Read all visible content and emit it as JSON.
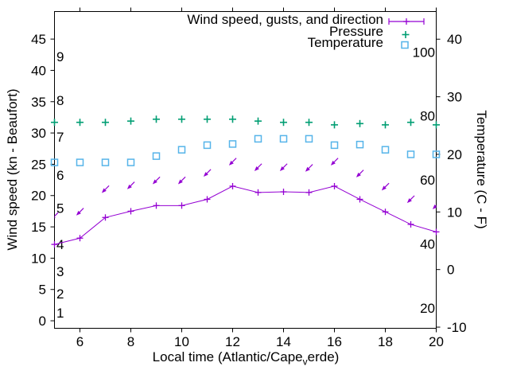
{
  "chart_data": {
    "type": "line",
    "title": "",
    "background": "#ffffff",
    "grid": false,
    "hours": [
      5,
      6,
      7,
      8,
      9,
      10,
      11,
      12,
      13,
      14,
      15,
      16,
      17,
      18,
      19,
      20
    ],
    "x_axis": {
      "label_parts": {
        "pre": "Local time (Atlantic/Cape",
        "sub": "v",
        "post": "erde)"
      },
      "ticks": [
        6,
        8,
        10,
        12,
        14,
        16,
        18,
        20
      ],
      "range": [
        5,
        20
      ]
    },
    "left_axis": {
      "label": "Wind speed (kn - Beaufort)",
      "ticks": [
        0,
        5,
        10,
        15,
        20,
        25,
        30,
        35,
        40,
        45
      ],
      "range": [
        -1.2,
        49.4
      ],
      "beaufort_labels": {
        "values": [
          "1",
          "2",
          "3",
          "4",
          "5",
          "6",
          "7",
          "8",
          "9"
        ],
        "position_kn": [
          1.3,
          4.3,
          7.9,
          12.2,
          18.0,
          23.3,
          29.4,
          35.2,
          42.2
        ]
      }
    },
    "right_axis": {
      "label": "Temperature (C - F)",
      "ticks_celsius": [
        -10,
        0,
        10,
        20,
        30,
        40
      ],
      "range_celsius": [
        -10.2,
        44.8
      ],
      "fahrenheit_labels": [
        20,
        40,
        60,
        80,
        100
      ]
    },
    "legend": [
      {
        "label": "Wind speed, gusts, and direction",
        "marker": "errorbar-plus",
        "color": "#9400d3"
      },
      {
        "label": "Pressure",
        "marker": "plus",
        "color": "#009e73"
      },
      {
        "label": "Temperature",
        "marker": "open-square",
        "color": "#56b4e9"
      }
    ],
    "series": [
      {
        "name": "wind-speed",
        "axis": "left",
        "unit": "kn",
        "style": "line-plus",
        "color": "#9400d3",
        "y": [
          12.2,
          13.2,
          16.5,
          17.5,
          18.4,
          18.4,
          19.4,
          21.5,
          20.5,
          20.6,
          20.5,
          21.5,
          19.4,
          17.4,
          15.4,
          14.2
        ]
      },
      {
        "name": "gust-direction-arrows",
        "axis": "left",
        "unit": "kn",
        "style": "arrow",
        "color": "#9400d3",
        "arrow_points_toward_deg": 225,
        "y": [
          16.7,
          17.4,
          21.0,
          21.6,
          22.4,
          22.4,
          23.6,
          25.4,
          24.5,
          24.5,
          24.4,
          25.4,
          23.5,
          21.4,
          19.4,
          18.4
        ]
      },
      {
        "name": "pressure",
        "axis": "left",
        "unit": "left-axis-units",
        "style": "plus",
        "color": "#009e73",
        "y": [
          31.7,
          31.7,
          31.7,
          31.9,
          32.2,
          32.2,
          32.2,
          32.2,
          31.9,
          31.7,
          31.7,
          31.3,
          31.5,
          31.3,
          31.7,
          31.3
        ]
      },
      {
        "name": "temperature",
        "axis": "right",
        "unit": "C",
        "style": "open-square",
        "color": "#56b4e9",
        "y": [
          18.6,
          18.6,
          18.6,
          18.6,
          19.7,
          20.8,
          21.6,
          21.8,
          22.7,
          22.7,
          22.7,
          21.6,
          21.7,
          20.8,
          20.0,
          20.0
        ]
      }
    ],
    "colors": {
      "wind": "#9400d3",
      "pressure": "#009e73",
      "temperature": "#56b4e9",
      "axis": "#000000"
    }
  }
}
